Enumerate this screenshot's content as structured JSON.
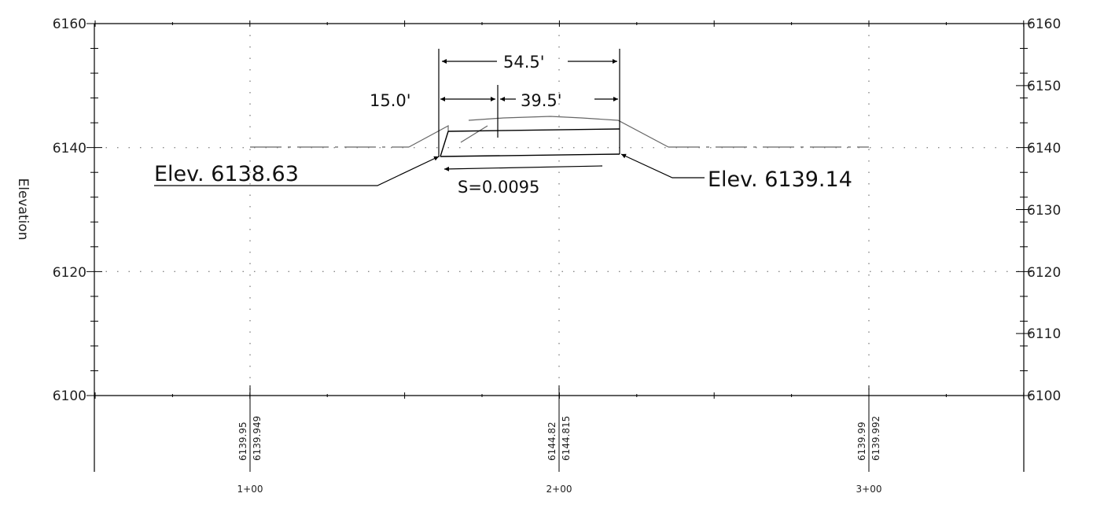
{
  "axes": {
    "y_label": "Elevation",
    "left_ticks": [
      "6160",
      "6140",
      "6120",
      "6100"
    ],
    "right_ticks": [
      "6160",
      "6150",
      "6140",
      "6130",
      "6120",
      "6110",
      "6100"
    ],
    "stations": [
      "1+00",
      "2+00",
      "3+00"
    ]
  },
  "station_data": [
    {
      "a": "6139.95",
      "b": "6139.949"
    },
    {
      "a": "6144.82",
      "b": "6144.815"
    },
    {
      "a": "6139.99",
      "b": "6139.992"
    }
  ],
  "annotations": {
    "elev_left": "Elev.  6138.63",
    "elev_right": "Elev.  6139.14",
    "slope": "S=0.0095",
    "dim_total": "54.5'",
    "dim_left": "15.0'",
    "dim_right": "39.5'"
  },
  "chart_data": {
    "type": "line",
    "xlabel": "",
    "ylabel": "Elevation",
    "ylim": [
      6100,
      6160
    ],
    "y_ticks_left": [
      6160,
      6140,
      6120,
      6100
    ],
    "y_ticks_right": [
      6160,
      6150,
      6140,
      6130,
      6120,
      6110,
      6100
    ],
    "x_ticks": [
      "1+00",
      "2+00",
      "3+00"
    ],
    "x": [
      100,
      200,
      300
    ],
    "series": [
      {
        "values": [
          6139.949,
          6144.815,
          6139.992
        ]
      }
    ],
    "grid": true
  }
}
